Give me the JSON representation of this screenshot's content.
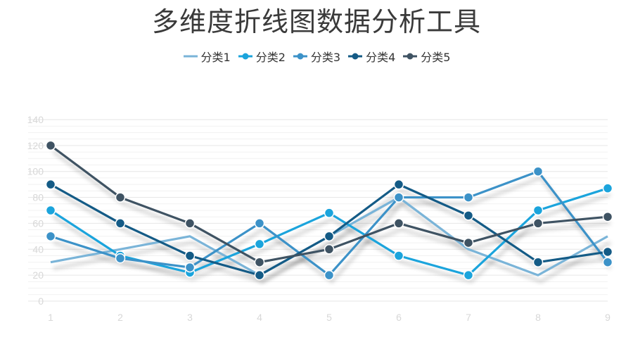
{
  "chart_data": {
    "type": "line",
    "title": "多维度折线图数据分析工具",
    "xlabel": "",
    "ylabel": "",
    "x": [
      1,
      2,
      3,
      4,
      5,
      6,
      7,
      8,
      9
    ],
    "xlim": [
      1,
      9
    ],
    "ylim": [
      0,
      140
    ],
    "yticks": [
      0,
      20,
      40,
      60,
      80,
      100,
      120,
      140
    ],
    "grid": true,
    "legend": "top-center",
    "series": [
      {
        "name": "分类1",
        "color": "#7ab4d8",
        "markers": false,
        "values": [
          30,
          40,
          50,
          20,
          50,
          80,
          40,
          20,
          50
        ]
      },
      {
        "name": "分类2",
        "color": "#1ba4dc",
        "markers": true,
        "values": [
          70,
          35,
          22,
          44,
          68,
          35,
          20,
          70,
          87
        ]
      },
      {
        "name": "分类3",
        "color": "#3c92c8",
        "markers": true,
        "values": [
          50,
          33,
          26,
          60,
          20,
          80,
          80,
          100,
          30
        ]
      },
      {
        "name": "分类4",
        "color": "#145b86",
        "markers": true,
        "values": [
          90,
          60,
          35,
          20,
          50,
          90,
          66,
          30,
          38
        ]
      },
      {
        "name": "分类5",
        "color": "#3f5363",
        "markers": true,
        "values": [
          120,
          80,
          60,
          30,
          40,
          60,
          45,
          60,
          65
        ]
      }
    ]
  }
}
